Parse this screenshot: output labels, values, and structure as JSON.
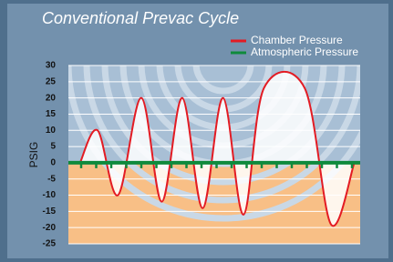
{
  "chart_data": {
    "type": "line",
    "title": "Conventional Prevac Cycle",
    "ylabel": "PSIG",
    "ylim": [
      -25,
      30
    ],
    "yticks": [
      30,
      25,
      20,
      15,
      10,
      5,
      0,
      -5,
      -10,
      -15,
      -20,
      -25
    ],
    "xlim": [
      0,
      100
    ],
    "grid": true,
    "legend": "top-right",
    "series": [
      {
        "name": "Chamber Pressure",
        "color": "#e31b23",
        "x": [
          4,
          10,
          17,
          25,
          32,
          39,
          46,
          53,
          60,
          67,
          81,
          90,
          98
        ],
        "values": [
          0,
          10,
          -10,
          20,
          -12,
          20,
          -14,
          20,
          -16,
          23,
          23,
          -19,
          0
        ]
      },
      {
        "name": "Atmospheric Pressure",
        "color": "#0f8a3c",
        "x": [
          0,
          100
        ],
        "values": [
          0,
          0
        ]
      }
    ]
  }
}
